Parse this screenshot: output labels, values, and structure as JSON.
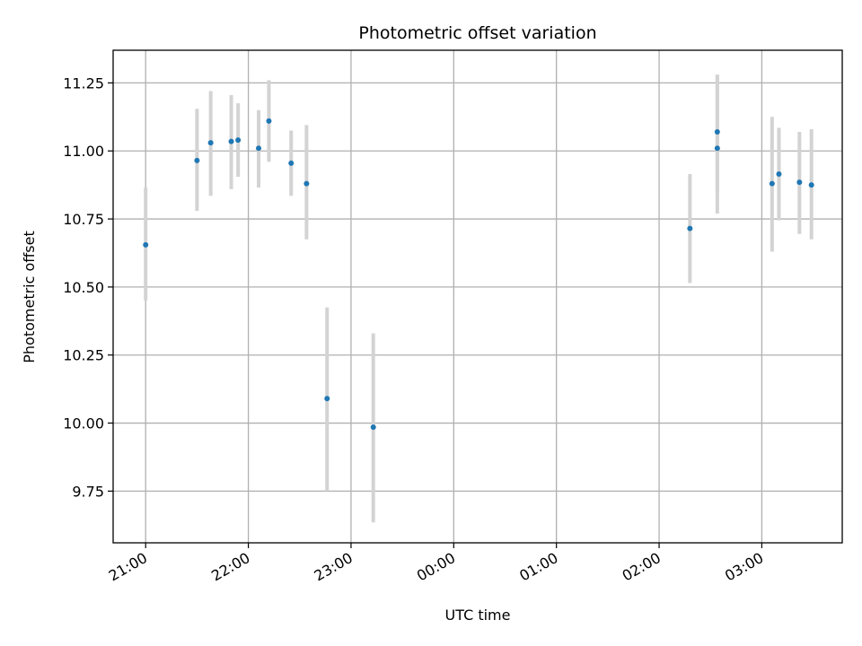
{
  "chart_data": {
    "type": "scatter",
    "title": "Photometric offset variation",
    "xlabel": "UTC time",
    "ylabel": "Photometric offset",
    "grid": true,
    "legend": "none",
    "xlim": [
      "20:41",
      "03:47"
    ],
    "ylim": [
      9.56,
      11.37
    ],
    "x_ticks": [
      "21:00",
      "22:00",
      "23:00",
      "00:00",
      "01:00",
      "02:00",
      "03:00"
    ],
    "y_ticks": [
      "9.75",
      "10.00",
      "10.25",
      "10.50",
      "10.75",
      "11.00",
      "11.25"
    ],
    "colors": {
      "marker": "#1f77b4",
      "errorbar": "#d3d3d3",
      "grid": "#b0b0b0"
    },
    "points": [
      {
        "x": "21:00",
        "y": 10.655,
        "yerr_low": 10.45,
        "yerr_high": 10.865
      },
      {
        "x": "21:30",
        "y": 10.965,
        "yerr_low": 10.78,
        "yerr_high": 11.155
      },
      {
        "x": "21:38",
        "y": 11.03,
        "yerr_low": 10.835,
        "yerr_high": 11.22
      },
      {
        "x": "21:50",
        "y": 11.035,
        "yerr_low": 10.86,
        "yerr_high": 11.205
      },
      {
        "x": "21:54",
        "y": 11.04,
        "yerr_low": 10.905,
        "yerr_high": 11.175
      },
      {
        "x": "22:06",
        "y": 11.01,
        "yerr_low": 10.865,
        "yerr_high": 11.15
      },
      {
        "x": "22:12",
        "y": 11.11,
        "yerr_low": 10.96,
        "yerr_high": 11.26
      },
      {
        "x": "22:25",
        "y": 10.955,
        "yerr_low": 10.835,
        "yerr_high": 11.075
      },
      {
        "x": "22:34",
        "y": 10.88,
        "yerr_low": 10.675,
        "yerr_high": 11.095
      },
      {
        "x": "22:46",
        "y": 10.09,
        "yerr_low": 9.75,
        "yerr_high": 10.425
      },
      {
        "x": "23:13",
        "y": 9.985,
        "yerr_low": 9.635,
        "yerr_high": 10.33
      },
      {
        "x": "02:18",
        "y": 10.715,
        "yerr_low": 10.515,
        "yerr_high": 10.915
      },
      {
        "x": "02:34",
        "y": 11.01,
        "yerr_low": 10.77,
        "yerr_high": 11.28
      },
      {
        "x": "02:34",
        "y": 11.07,
        "yerr_low": 10.85,
        "yerr_high": 11.28
      },
      {
        "x": "03:06",
        "y": 10.88,
        "yerr_low": 10.63,
        "yerr_high": 11.125
      },
      {
        "x": "03:10",
        "y": 10.915,
        "yerr_low": 10.745,
        "yerr_high": 11.085
      },
      {
        "x": "03:22",
        "y": 10.885,
        "yerr_low": 10.695,
        "yerr_high": 11.07
      },
      {
        "x": "03:29",
        "y": 10.875,
        "yerr_low": 10.675,
        "yerr_high": 11.08
      }
    ]
  }
}
